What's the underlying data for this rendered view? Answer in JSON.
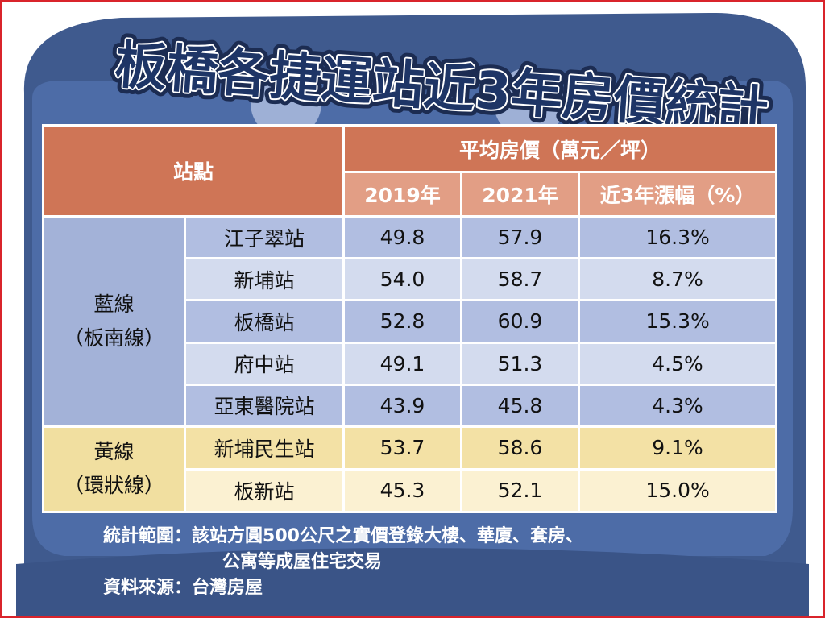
{
  "title": "板橋各捷運站近3年房價統計",
  "colors": {
    "background_navy": "#3f5a8e",
    "panel_navy": "#4b6aa3",
    "header_dark": "#cf7556",
    "header_light": "#e29e85",
    "blue_line": "#a3b2d8",
    "yellow_line": "#f1dfa0",
    "frame_red": "#d9242b"
  },
  "chart_data": {
    "type": "table",
    "title": "板橋各捷運站近3年房價統計",
    "header": {
      "station": "站點",
      "group": "平均房價（萬元／坪）",
      "columns": [
        "2019年",
        "2021年",
        "近3年漲幅（%）"
      ]
    },
    "lines": [
      {
        "line_name": "藍線",
        "line_sub": "（板南線）",
        "rows": [
          {
            "station": "江子翠站",
            "y2019": "49.8",
            "y2021": "57.9",
            "change": "16.3%"
          },
          {
            "station": "新埔站",
            "y2019": "54.0",
            "y2021": "58.7",
            "change": "8.7%"
          },
          {
            "station": "板橋站",
            "y2019": "52.8",
            "y2021": "60.9",
            "change": "15.3%"
          },
          {
            "station": "府中站",
            "y2019": "49.1",
            "y2021": "51.3",
            "change": "4.5%"
          },
          {
            "station": "亞東醫院站",
            "y2019": "43.9",
            "y2021": "45.8",
            "change": "4.3%"
          }
        ]
      },
      {
        "line_name": "黃線",
        "line_sub": "（環狀線）",
        "rows": [
          {
            "station": "新埔民生站",
            "y2019": "53.7",
            "y2021": "58.6",
            "change": "9.1%"
          },
          {
            "station": "板新站",
            "y2019": "45.3",
            "y2021": "52.1",
            "change": "15.0%"
          }
        ]
      }
    ]
  },
  "notes": {
    "scope_label": "統計範圍：",
    "scope_line1": "該站方圓500公尺之實價登錄大樓、華廈、套房、",
    "scope_line2": "公寓等成屋住宅交易",
    "source_label": "資料來源：",
    "source_value": "台灣房屋"
  }
}
